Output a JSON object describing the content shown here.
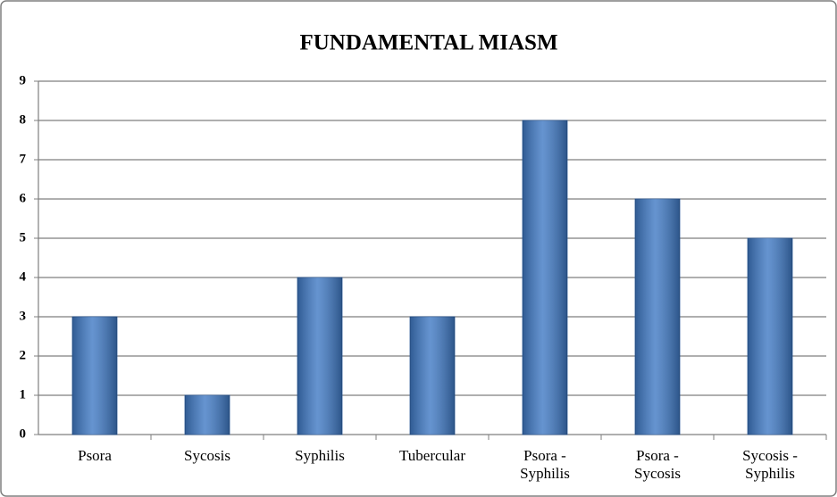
{
  "chart_data": {
    "type": "bar",
    "title": "FUNDAMENTAL MIASM",
    "categories": [
      "Psora",
      "Sycosis",
      "Syphilis",
      "Tubercular",
      "Psora - Syphilis",
      "Psora - Sycosis",
      "Sycosis - Syphilis"
    ],
    "values": [
      3,
      1,
      4,
      3,
      8,
      6,
      5
    ],
    "color": "#3f79c4",
    "ylim": [
      0,
      9
    ],
    "yticks": [
      0,
      1,
      2,
      3,
      4,
      5,
      6,
      7,
      8,
      9
    ],
    "grid": true
  }
}
